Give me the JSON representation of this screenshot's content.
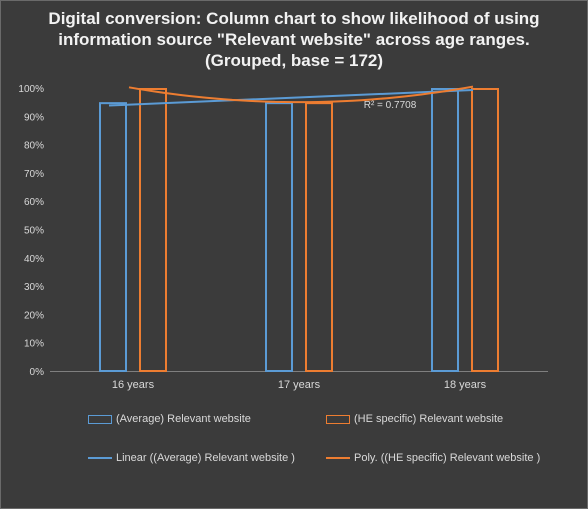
{
  "chart_data": {
    "type": "bar",
    "title": "Digital conversion: Column chart to show likelihood of using information source \"Relevant website\" across age ranges. (Grouped, base = 172)",
    "categories": [
      "16 years",
      "17 years",
      "18 years"
    ],
    "series": [
      {
        "name": "(Average) Relevant website",
        "values": [
          95,
          95,
          100
        ],
        "color": "#5b9bd5",
        "style": "outline"
      },
      {
        "name": "(HE specific) Relevant website",
        "values": [
          100,
          95,
          100
        ],
        "color": "#ed7d31",
        "style": "outline"
      }
    ],
    "trendlines": [
      {
        "name": "Linear ((Average) Relevant website )",
        "kind": "linear",
        "series": 0,
        "color": "#5b9bd5",
        "r_squared_label": "R² = 0.7708"
      },
      {
        "name": "Poly. ((HE specific) Relevant website )",
        "kind": "polynomial",
        "series": 1,
        "color": "#ed7d31"
      }
    ],
    "y_ticks": [
      "0%",
      "10%",
      "20%",
      "30%",
      "40%",
      "50%",
      "60%",
      "70%",
      "80%",
      "90%",
      "100%"
    ],
    "ylim": [
      0,
      100
    ],
    "grid": false,
    "legend_position": "bottom"
  }
}
